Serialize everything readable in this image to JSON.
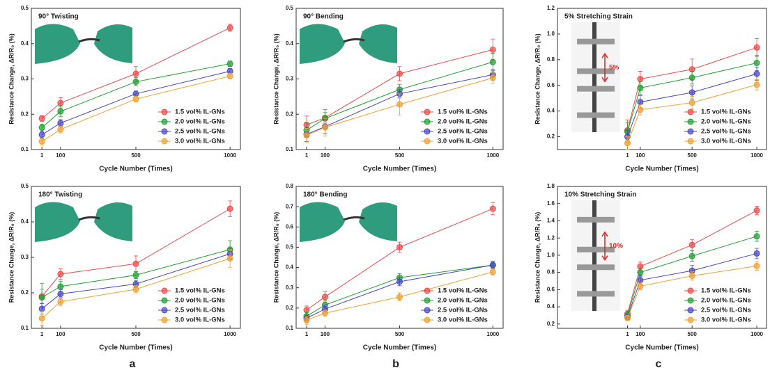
{
  "panel_labels": [
    "a",
    "b",
    "c"
  ],
  "chart_data": [
    {
      "type": "line",
      "title": "90° Twisting",
      "x_label": "Cycle Number (Times)",
      "y_label": "Resistance Change, ΔR/R₀ (%)",
      "x": [
        1,
        100,
        500,
        1000
      ],
      "xlim": [
        -55,
        1055
      ],
      "xticks": [
        1,
        100,
        500,
        1000
      ],
      "ylim": [
        0.1,
        0.5
      ],
      "yticks": [
        0.1,
        0.2,
        0.3,
        0.4,
        0.5
      ],
      "legend": "lower right",
      "series": [
        {
          "name": "1.5 vol% IL-GNs",
          "color": "#f04848",
          "values": [
            0.188,
            0.232,
            0.315,
            0.445
          ],
          "errors": [
            0.008,
            0.015,
            0.02,
            0.01
          ]
        },
        {
          "name": "2.0 vol% IL-GNs",
          "color": "#1fa030",
          "values": [
            0.162,
            0.208,
            0.292,
            0.343
          ],
          "errors": [
            0.01,
            0.015,
            0.012,
            0.008
          ]
        },
        {
          "name": "2.5 vol% IL-GNs",
          "color": "#4646c8",
          "values": [
            0.142,
            0.175,
            0.258,
            0.322
          ],
          "errors": [
            0.01,
            0.01,
            0.008,
            0.008
          ]
        },
        {
          "name": "3.0 vol% IL-GNs",
          "color": "#f0a030",
          "values": [
            0.123,
            0.157,
            0.243,
            0.308
          ],
          "errors": [
            0.01,
            0.01,
            0.008,
            0.008
          ]
        }
      ]
    },
    {
      "type": "line",
      "title": "90° Bending",
      "x_label": "Cycle Number (Times)",
      "y_label": "Resistance Change, ΔR/R₀ (%)",
      "x": [
        1,
        100,
        500,
        1000
      ],
      "xlim": [
        -55,
        1055
      ],
      "xticks": [
        1,
        100,
        500,
        1000
      ],
      "ylim": [
        0.1,
        0.5
      ],
      "yticks": [
        0.1,
        0.2,
        0.3,
        0.4,
        0.5
      ],
      "legend": "lower right",
      "series": [
        {
          "name": "1.5 vol% IL-GNs",
          "color": "#f04848",
          "values": [
            0.17,
            0.19,
            0.315,
            0.383
          ],
          "errors": [
            0.025,
            0.015,
            0.02,
            0.03
          ]
        },
        {
          "name": "2.0 vol% IL-GNs",
          "color": "#1fa030",
          "values": [
            0.155,
            0.188,
            0.27,
            0.348
          ],
          "errors": [
            0.02,
            0.025,
            0.015,
            0.025
          ]
        },
        {
          "name": "2.5 vol% IL-GNs",
          "color": "#4646c8",
          "values": [
            0.143,
            0.165,
            0.258,
            0.312
          ],
          "errors": [
            0.02,
            0.02,
            0.012,
            0.015
          ]
        },
        {
          "name": "3.0 vol% IL-GNs",
          "color": "#f0a030",
          "values": [
            0.14,
            0.163,
            0.228,
            0.303
          ],
          "errors": [
            0.02,
            0.025,
            0.03,
            0.015
          ]
        }
      ]
    },
    {
      "type": "line",
      "title": "5% Stretching Strain",
      "x_label": "Cycle Number (Times)",
      "y_label": "Resistance Change, ΔR/R₀ (%)",
      "annotation": "5%",
      "x": [
        1,
        100,
        500,
        1000
      ],
      "xlim": [
        -540,
        1075
      ],
      "xticks": [
        1,
        100,
        500,
        1000
      ],
      "ylim": [
        0.1,
        1.2
      ],
      "yticks": [
        0.2,
        0.4,
        0.6,
        0.8,
        {
          "value": 1,
          "label": "1.0"
        },
        1.2
      ],
      "legend": "lower right",
      "series": [
        {
          "name": "1.5 vol% IL-GNs",
          "color": "#f04848",
          "values": [
            0.25,
            0.65,
            0.725,
            0.895
          ],
          "errors": [
            0.08,
            0.06,
            0.08,
            0.07
          ]
        },
        {
          "name": "2.0 vol% IL-GNs",
          "color": "#1fa030",
          "values": [
            0.24,
            0.58,
            0.66,
            0.775
          ],
          "errors": [
            0.07,
            0.05,
            0.05,
            0.06
          ]
        },
        {
          "name": "2.5 vol% IL-GNs",
          "color": "#4646c8",
          "values": [
            0.2,
            0.47,
            0.545,
            0.69
          ],
          "errors": [
            0.05,
            0.05,
            0.05,
            0.05
          ]
        },
        {
          "name": "3.0 vol% IL-GNs",
          "color": "#f0a030",
          "values": [
            0.15,
            0.41,
            0.465,
            0.605
          ],
          "errors": [
            0.05,
            0.04,
            0.05,
            0.04
          ]
        }
      ]
    },
    {
      "type": "line",
      "title": "180° Twisting",
      "x_label": "Cycle Number (Times)",
      "y_label": "Resistance Change, ΔR/R₀ (%)",
      "x": [
        1,
        100,
        500,
        1000
      ],
      "xlim": [
        -55,
        1055
      ],
      "xticks": [
        1,
        100,
        500,
        1000
      ],
      "ylim": [
        0.1,
        0.5
      ],
      "yticks": [
        0.1,
        0.2,
        0.3,
        0.4,
        0.5
      ],
      "legend": "lower right",
      "series": [
        {
          "name": "1.5 vol% IL-GNs",
          "color": "#f04848",
          "values": [
            0.19,
            0.253,
            0.282,
            0.437
          ],
          "errors": [
            0.02,
            0.015,
            0.022,
            0.022
          ]
        },
        {
          "name": "2.0 vol% IL-GNs",
          "color": "#1fa030",
          "values": [
            0.187,
            0.218,
            0.25,
            0.322
          ],
          "errors": [
            0.04,
            0.015,
            0.01,
            0.025
          ]
        },
        {
          "name": "2.5 vol% IL-GNs",
          "color": "#4646c8",
          "values": [
            0.155,
            0.197,
            0.225,
            0.31
          ],
          "errors": [
            0.015,
            0.012,
            0.01,
            0.015
          ]
        },
        {
          "name": "3.0 vol% IL-GNs",
          "color": "#f0a030",
          "values": [
            0.128,
            0.175,
            0.21,
            0.297
          ],
          "errors": [
            0.02,
            0.012,
            0.01,
            0.025
          ]
        }
      ]
    },
    {
      "type": "line",
      "title": "180° Bending",
      "x_label": "Cycle Number (Times)",
      "y_label": "Resistance Change, ΔR/R₀ (%)",
      "x": [
        1,
        100,
        500,
        1000
      ],
      "xlim": [
        -55,
        1055
      ],
      "xticks": [
        1,
        100,
        500,
        1000
      ],
      "ylim": [
        0.1,
        0.8
      ],
      "yticks": [
        0.1,
        0.2,
        0.3,
        0.4,
        0.5,
        0.6,
        0.7,
        0.8
      ],
      "legend": "lower right",
      "series": [
        {
          "name": "1.5 vol% IL-GNs",
          "color": "#f04848",
          "values": [
            0.19,
            0.255,
            0.5,
            0.69
          ],
          "errors": [
            0.02,
            0.025,
            0.025,
            0.03
          ]
        },
        {
          "name": "2.0 vol% IL-GNs",
          "color": "#1fa030",
          "values": [
            0.16,
            0.215,
            0.35,
            0.412
          ],
          "errors": [
            0.02,
            0.02,
            0.02,
            0.02
          ]
        },
        {
          "name": "2.5 vol% IL-GNs",
          "color": "#4646c8",
          "values": [
            0.15,
            0.195,
            0.33,
            0.412
          ],
          "errors": [
            0.02,
            0.02,
            0.02,
            0.015
          ]
        },
        {
          "name": "3.0 vol% IL-GNs",
          "color": "#f0a030",
          "values": [
            0.14,
            0.175,
            0.255,
            0.378
          ],
          "errors": [
            0.02,
            0.015,
            0.02,
            0.015
          ]
        }
      ]
    },
    {
      "type": "line",
      "title": "10% Stretching Strain",
      "x_label": "Cycle Number (Times)",
      "y_label": "Resistance Change, ΔR/R₀ (%)",
      "annotation": "10%",
      "x": [
        1,
        100,
        500,
        1000
      ],
      "xlim": [
        -540,
        1075
      ],
      "xticks": [
        1,
        100,
        500,
        1000
      ],
      "ylim": [
        0.15,
        1.8
      ],
      "yticks": [
        0.2,
        0.4,
        0.6,
        0.8,
        {
          "value": 1,
          "label": "1.0"
        },
        1.2,
        1.4,
        1.6,
        1.8
      ],
      "legend": "lower right",
      "series": [
        {
          "name": "1.5 vol% IL-GNs",
          "color": "#f04848",
          "values": [
            0.32,
            0.87,
            1.12,
            1.52
          ],
          "errors": [
            0.04,
            0.05,
            0.06,
            0.05
          ]
        },
        {
          "name": "2.0 vol% IL-GNs",
          "color": "#1fa030",
          "values": [
            0.3,
            0.8,
            0.99,
            1.22
          ],
          "errors": [
            0.04,
            0.05,
            0.06,
            0.06
          ]
        },
        {
          "name": "2.5 vol% IL-GNs",
          "color": "#4646c8",
          "values": [
            0.28,
            0.71,
            0.82,
            1.02
          ],
          "errors": [
            0.03,
            0.05,
            0.06,
            0.06
          ]
        },
        {
          "name": "3.0 vol% IL-GNs",
          "color": "#f0a030",
          "values": [
            0.27,
            0.64,
            0.76,
            0.875
          ],
          "errors": [
            0.03,
            0.04,
            0.05,
            0.05
          ]
        }
      ]
    }
  ]
}
